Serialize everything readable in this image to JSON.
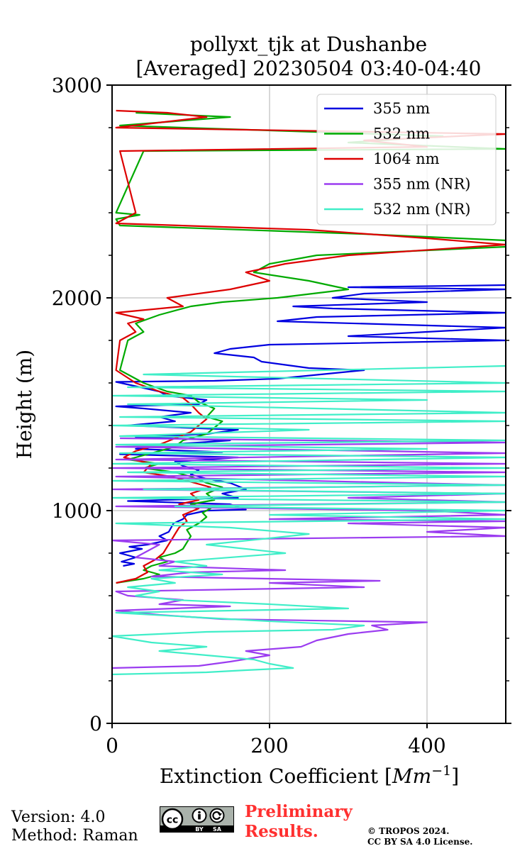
{
  "chart_data": {
    "type": "line",
    "title_line1": "pollyxt_tjk at Dushanbe",
    "title_line2": "[Averaged] 20230504 03:40-04:40",
    "xlabel": "Extinction Coefficient [",
    "xlabel_unit": "Mm",
    "xlabel_exp": "−1",
    "xlabel_end": "]",
    "ylabel": "Height (m)",
    "xlim": [
      0,
      500
    ],
    "ylim": [
      0,
      3000
    ],
    "xticks": [
      0,
      200,
      400
    ],
    "xtick_labels": [
      "0",
      "200",
      "400"
    ],
    "yticks": [
      0,
      1000,
      2000,
      3000
    ],
    "ytick_labels": [
      "0",
      "1000",
      "2000",
      "3000"
    ],
    "grid": true,
    "legend_position": "top-right",
    "series": [
      {
        "name": "355 nm",
        "color": "#0000e0",
        "points": [
          [
            14,
            740
          ],
          [
            28,
            750
          ],
          [
            12,
            760
          ],
          [
            30,
            780
          ],
          [
            10,
            800
          ],
          [
            38,
            820
          ],
          [
            22,
            830
          ],
          [
            45,
            840
          ],
          [
            70,
            860
          ],
          [
            60,
            880
          ],
          [
            72,
            900
          ],
          [
            78,
            940
          ],
          [
            90,
            960
          ],
          [
            95,
            980
          ],
          [
            120,
            1000
          ],
          [
            170,
            1005
          ],
          [
            150,
            1030
          ],
          [
            20,
            1045
          ],
          [
            160,
            1060
          ],
          [
            140,
            1080
          ],
          [
            170,
            1100
          ],
          [
            150,
            1130
          ],
          [
            120,
            1150
          ],
          [
            100,
            1170
          ],
          [
            110,
            1190
          ],
          [
            90,
            1210
          ],
          [
            80,
            1230
          ],
          [
            160,
            1250
          ],
          [
            10,
            1265
          ],
          [
            140,
            1275
          ],
          [
            30,
            1290
          ],
          [
            70,
            1310
          ],
          [
            150,
            1330
          ],
          [
            30,
            1345
          ],
          [
            120,
            1360
          ],
          [
            160,
            1380
          ],
          [
            20,
            1400
          ],
          [
            80,
            1420
          ],
          [
            60,
            1440
          ],
          [
            100,
            1460
          ],
          [
            40,
            1480
          ],
          [
            5,
            1490
          ],
          [
            110,
            1500
          ],
          [
            120,
            1520
          ],
          [
            70,
            1540
          ],
          [
            60,
            1560
          ],
          [
            5,
            1605
          ],
          [
            130,
            1610
          ],
          [
            210,
            1620
          ],
          [
            320,
            1660
          ],
          [
            250,
            1670
          ],
          [
            230,
            1680
          ],
          [
            190,
            1700
          ],
          [
            180,
            1720
          ],
          [
            130,
            1740
          ],
          [
            150,
            1760
          ],
          [
            200,
            1780
          ],
          [
            500,
            1800
          ],
          [
            300,
            1820
          ],
          [
            500,
            1860
          ],
          [
            210,
            1890
          ],
          [
            260,
            1910
          ],
          [
            500,
            1930
          ],
          [
            280,
            1950
          ],
          [
            230,
            1960
          ],
          [
            400,
            1980
          ],
          [
            280,
            2000
          ],
          [
            320,
            2020
          ],
          [
            500,
            2040
          ],
          [
            300,
            2050
          ],
          [
            500,
            2060
          ]
        ]
      },
      {
        "name": "532 nm",
        "color": "#00aa00",
        "points": [
          [
            5,
            660
          ],
          [
            40,
            680
          ],
          [
            60,
            700
          ],
          [
            40,
            720
          ],
          [
            50,
            740
          ],
          [
            70,
            760
          ],
          [
            60,
            780
          ],
          [
            80,
            800
          ],
          [
            90,
            820
          ],
          [
            95,
            850
          ],
          [
            100,
            880
          ],
          [
            95,
            910
          ],
          [
            110,
            940
          ],
          [
            120,
            970
          ],
          [
            115,
            990
          ],
          [
            125,
            1010
          ],
          [
            100,
            1030
          ],
          [
            130,
            1050
          ],
          [
            120,
            1080
          ],
          [
            140,
            1110
          ],
          [
            120,
            1130
          ],
          [
            100,
            1160
          ],
          [
            80,
            1180
          ],
          [
            40,
            1200
          ],
          [
            60,
            1220
          ],
          [
            20,
            1240
          ],
          [
            40,
            1260
          ],
          [
            80,
            1300
          ],
          [
            90,
            1330
          ],
          [
            120,
            1360
          ],
          [
            130,
            1390
          ],
          [
            140,
            1420
          ],
          [
            120,
            1440
          ],
          [
            130,
            1480
          ],
          [
            110,
            1510
          ],
          [
            100,
            1540
          ],
          [
            70,
            1560
          ],
          [
            40,
            1600
          ],
          [
            10,
            1660
          ],
          [
            20,
            1800
          ],
          [
            40,
            1840
          ],
          [
            30,
            1880
          ],
          [
            60,
            1920
          ],
          [
            100,
            1960
          ],
          [
            140,
            1980
          ],
          [
            210,
            2000
          ],
          [
            300,
            2040
          ],
          [
            250,
            2080
          ],
          [
            180,
            2120
          ],
          [
            200,
            2160
          ],
          [
            260,
            2200
          ],
          [
            500,
            2240
          ],
          [
            500,
            2270
          ],
          [
            320,
            2300
          ],
          [
            10,
            2340
          ],
          [
            5,
            2370
          ],
          [
            35,
            2390
          ],
          [
            5,
            2400
          ],
          [
            40,
            2690
          ],
          [
            500,
            2700
          ],
          [
            300,
            2730
          ],
          [
            420,
            2760
          ],
          [
            10,
            2810
          ],
          [
            80,
            2830
          ],
          [
            150,
            2850
          ],
          [
            30,
            2870
          ]
        ]
      },
      {
        "name": "1064 nm",
        "color": "#dd0000",
        "points": [
          [
            5,
            660
          ],
          [
            30,
            680
          ],
          [
            45,
            710
          ],
          [
            40,
            740
          ],
          [
            55,
            770
          ],
          [
            65,
            800
          ],
          [
            70,
            830
          ],
          [
            75,
            860
          ],
          [
            80,
            890
          ],
          [
            85,
            920
          ],
          [
            95,
            950
          ],
          [
            90,
            980
          ],
          [
            110,
            1010
          ],
          [
            85,
            1030
          ],
          [
            110,
            1050
          ],
          [
            100,
            1080
          ],
          [
            125,
            1110
          ],
          [
            95,
            1140
          ],
          [
            75,
            1160
          ],
          [
            40,
            1180
          ],
          [
            50,
            1220
          ],
          [
            15,
            1250
          ],
          [
            30,
            1280
          ],
          [
            60,
            1310
          ],
          [
            80,
            1340
          ],
          [
            100,
            1370
          ],
          [
            110,
            1400
          ],
          [
            120,
            1430
          ],
          [
            110,
            1460
          ],
          [
            100,
            1500
          ],
          [
            90,
            1530
          ],
          [
            60,
            1560
          ],
          [
            30,
            1600
          ],
          [
            5,
            1660
          ],
          [
            10,
            1800
          ],
          [
            30,
            1840
          ],
          [
            20,
            1880
          ],
          [
            40,
            1900
          ],
          [
            5,
            1930
          ],
          [
            90,
            1960
          ],
          [
            70,
            2000
          ],
          [
            150,
            2040
          ],
          [
            200,
            2080
          ],
          [
            170,
            2120
          ],
          [
            220,
            2160
          ],
          [
            300,
            2200
          ],
          [
            500,
            2250
          ],
          [
            400,
            2280
          ],
          [
            250,
            2320
          ],
          [
            5,
            2350
          ],
          [
            30,
            2400
          ],
          [
            10,
            2690
          ],
          [
            400,
            2710
          ],
          [
            320,
            2740
          ],
          [
            500,
            2770
          ],
          [
            5,
            2800
          ],
          [
            120,
            2850
          ],
          [
            70,
            2870
          ],
          [
            5,
            2880
          ]
        ]
      },
      {
        "name": "355 nm (NR)",
        "color": "#9b3cf0",
        "points": [
          [
            0,
            260
          ],
          [
            110,
            270
          ],
          [
            150,
            290
          ],
          [
            200,
            320
          ],
          [
            170,
            340
          ],
          [
            240,
            360
          ],
          [
            260,
            390
          ],
          [
            300,
            420
          ],
          [
            350,
            440
          ],
          [
            330,
            460
          ],
          [
            400,
            475
          ],
          [
            140,
            490
          ],
          [
            60,
            510
          ],
          [
            5,
            530
          ],
          [
            150,
            550
          ],
          [
            60,
            560
          ],
          [
            90,
            580
          ],
          [
            20,
            600
          ],
          [
            5,
            620
          ],
          [
            320,
            640
          ],
          [
            200,
            660
          ],
          [
            340,
            670
          ],
          [
            50,
            690
          ],
          [
            100,
            710
          ],
          [
            220,
            720
          ],
          [
            60,
            740
          ],
          [
            80,
            760
          ],
          [
            30,
            780
          ],
          [
            60,
            840
          ],
          [
            0,
            860
          ],
          [
            500,
            880
          ],
          [
            400,
            900
          ],
          [
            500,
            920
          ],
          [
            300,
            940
          ],
          [
            500,
            950
          ],
          [
            200,
            960
          ],
          [
            500,
            980
          ],
          [
            400,
            1000
          ],
          [
            5,
            1020
          ],
          [
            500,
            1040
          ],
          [
            300,
            1060
          ],
          [
            500,
            1080
          ],
          [
            0,
            1100
          ],
          [
            500,
            1120
          ],
          [
            5,
            1160
          ],
          [
            500,
            1180
          ],
          [
            0,
            1200
          ],
          [
            500,
            1220
          ],
          [
            5,
            1240
          ],
          [
            500,
            1270
          ],
          [
            5,
            1300
          ],
          [
            500,
            1320
          ],
          [
            10,
            1340
          ]
        ]
      },
      {
        "name": "532 nm (NR)",
        "color": "#40eec8",
        "points": [
          [
            0,
            230
          ],
          [
            120,
            240
          ],
          [
            170,
            250
          ],
          [
            230,
            260
          ],
          [
            200,
            280
          ],
          [
            180,
            300
          ],
          [
            120,
            320
          ],
          [
            60,
            340
          ],
          [
            120,
            360
          ],
          [
            50,
            380
          ],
          [
            0,
            410
          ],
          [
            120,
            430
          ],
          [
            280,
            440
          ],
          [
            320,
            460
          ],
          [
            200,
            480
          ],
          [
            100,
            500
          ],
          [
            5,
            520
          ],
          [
            300,
            540
          ],
          [
            200,
            560
          ],
          [
            80,
            580
          ],
          [
            30,
            600
          ],
          [
            60,
            620
          ],
          [
            20,
            640
          ],
          [
            80,
            660
          ],
          [
            50,
            680
          ],
          [
            140,
            700
          ],
          [
            60,
            720
          ],
          [
            120,
            740
          ],
          [
            80,
            760
          ],
          [
            220,
            800
          ],
          [
            120,
            840
          ],
          [
            200,
            870
          ],
          [
            250,
            890
          ],
          [
            150,
            920
          ],
          [
            5,
            940
          ],
          [
            500,
            960
          ],
          [
            200,
            980
          ],
          [
            500,
            1000
          ],
          [
            80,
            1020
          ],
          [
            500,
            1040
          ],
          [
            0,
            1060
          ],
          [
            500,
            1080
          ],
          [
            40,
            1100
          ],
          [
            500,
            1120
          ],
          [
            0,
            1140
          ],
          [
            500,
            1160
          ],
          [
            20,
            1180
          ],
          [
            500,
            1200
          ],
          [
            0,
            1220
          ],
          [
            500,
            1250
          ],
          [
            10,
            1270
          ],
          [
            400,
            1290
          ],
          [
            5,
            1310
          ],
          [
            500,
            1330
          ],
          [
            10,
            1350
          ],
          [
            250,
            1380
          ],
          [
            0,
            1400
          ],
          [
            500,
            1420
          ],
          [
            10,
            1440
          ],
          [
            500,
            1460
          ],
          [
            20,
            1500
          ],
          [
            400,
            1520
          ],
          [
            0,
            1540
          ],
          [
            500,
            1560
          ],
          [
            20,
            1580
          ],
          [
            500,
            1600
          ],
          [
            40,
            1640
          ],
          [
            500,
            1680
          ]
        ]
      }
    ]
  },
  "footer": {
    "version": "Version: 4.0",
    "method": "Method: Raman",
    "preliminary_line1": "Preliminary",
    "preliminary_line2": "Results.",
    "copyright_line1": "© TROPOS 2024.",
    "copyright_line2": "CC BY SA 4.0 License.",
    "license_by": "BY",
    "license_sa": "SA"
  }
}
